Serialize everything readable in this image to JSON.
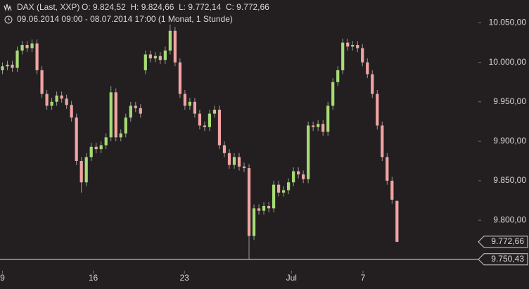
{
  "chart_data": {
    "type": "candlestick",
    "title": "DAX (Last, XXP)",
    "ohlc_summary": "O: 9.824,52  H: 9.824,66  L: 9.772,14  C: 9.772,66",
    "subtitle": "09.06.2014 09:00 - 08.07.2014 17:00 (1 Monat, 1 Stunde)",
    "up_color": "#a6dc74",
    "down_color": "#f2a3a3",
    "wick_color": "#9a9a9a",
    "xlim": [
      -0.5,
      96.5
    ],
    "xticks": [
      {
        "value": 0,
        "label": "9"
      },
      {
        "value": 18.4,
        "label": "16"
      },
      {
        "value": 36.9,
        "label": "23"
      },
      {
        "value": 58.6,
        "label": "Jul"
      },
      {
        "value": 73.1,
        "label": "7"
      }
    ],
    "ylim": [
      9736,
      10079
    ],
    "yticks": [
      {
        "value": 9800,
        "label": "9.800,00"
      },
      {
        "value": 9850,
        "label": "9.850,00"
      },
      {
        "value": 9900,
        "label": "9.900,00"
      },
      {
        "value": 9950,
        "label": "9.950,00"
      },
      {
        "value": 10000,
        "label": "10.000,00"
      },
      {
        "value": 10050,
        "label": "10.050,00"
      }
    ],
    "price_markers": [
      {
        "value": 9772.66,
        "label": "9.772,66"
      },
      {
        "value": 9750.43,
        "label": "9.750,43"
      }
    ],
    "open": [
      9990,
      9995,
      9997,
      9993,
      10015,
      10022,
      10018,
      10024,
      9990,
      9960,
      9945,
      9950,
      9958,
      9954,
      9946,
      9930,
      9875,
      9848,
      9880,
      9893,
      9890,
      9895,
      9905,
      9962,
      9905,
      9910,
      9930,
      9945,
      9942,
      9990,
      10010,
      10005,
      10008,
      10003,
      10015,
      10040,
      10000,
      9960,
      9945,
      9950,
      9935,
      9920,
      9918,
      9935,
      9940,
      9895,
      9885,
      9870,
      9880,
      9868,
      9866,
      9780,
      9815,
      9812,
      9818,
      9815,
      9845,
      9835,
      9838,
      9848,
      9862,
      9858,
      9852,
      9920,
      9918,
      9922,
      9912,
      9945,
      9975,
      9990,
      10025,
      10020,
      10022,
      10018,
      10000,
      9985,
      9960,
      9920,
      9880,
      9850,
      9824.52
    ],
    "high": [
      10000,
      10002,
      10002,
      10020,
      10027,
      10027,
      10029,
      10029,
      9995,
      9965,
      9955,
      9963,
      9963,
      9959,
      9951,
      9935,
      9880,
      9885,
      9898,
      9898,
      9900,
      9910,
      9970,
      9967,
      9915,
      9935,
      9950,
      9950,
      9947,
      10015,
      10015,
      10013,
      10013,
      10020,
      10048,
      10045,
      10005,
      9965,
      9955,
      9955,
      9940,
      9925,
      9940,
      9945,
      9945,
      9900,
      9890,
      9885,
      9885,
      9873,
      9871,
      9820,
      9820,
      9823,
      9823,
      9850,
      9850,
      9843,
      9853,
      9867,
      9867,
      9863,
      9925,
      9925,
      9927,
      9927,
      9950,
      9980,
      9995,
      10030,
      10030,
      10027,
      10027,
      10023,
      10005,
      9990,
      9965,
      9925,
      9885,
      9855,
      9824.66
    ],
    "low": [
      9985,
      9990,
      9988,
      9988,
      10010,
      10013,
      10013,
      9985,
      9955,
      9940,
      9940,
      9945,
      9949,
      9941,
      9925,
      9870,
      9835,
      9843,
      9875,
      9885,
      9885,
      9890,
      9900,
      9900,
      9900,
      9905,
      9925,
      9937,
      9930,
      9985,
      10000,
      10000,
      9998,
      9998,
      10010,
      9995,
      9955,
      9940,
      9940,
      9930,
      9915,
      9913,
      9913,
      9930,
      9890,
      9880,
      9865,
      9865,
      9863,
      9861,
      9750.43,
      9775,
      9807,
      9807,
      9810,
      9810,
      9830,
      9830,
      9833,
      9843,
      9853,
      9847,
      9847,
      9913,
      9913,
      9907,
      9907,
      9940,
      9970,
      9985,
      10015,
      10015,
      10013,
      9995,
      9980,
      9955,
      9915,
      9875,
      9845,
      9821,
      9772.14
    ],
    "close": [
      9995,
      9997,
      9993,
      10015,
      10022,
      10018,
      10024,
      9990,
      9960,
      9945,
      9950,
      9958,
      9954,
      9946,
      9930,
      9875,
      9848,
      9880,
      9893,
      9890,
      9895,
      9905,
      9962,
      9905,
      9910,
      9930,
      9945,
      9942,
      9935,
      10010,
      10005,
      10008,
      10003,
      10015,
      10040,
      10000,
      9960,
      9945,
      9950,
      9935,
      9920,
      9918,
      9935,
      9940,
      9895,
      9885,
      9870,
      9880,
      9868,
      9866,
      9780,
      9815,
      9812,
      9818,
      9815,
      9845,
      9835,
      9838,
      9848,
      9862,
      9858,
      9852,
      9920,
      9918,
      9922,
      9912,
      9945,
      9975,
      9990,
      10025,
      10020,
      10022,
      10018,
      10000,
      9985,
      9960,
      9920,
      9880,
      9850,
      9826,
      9772.66
    ]
  }
}
